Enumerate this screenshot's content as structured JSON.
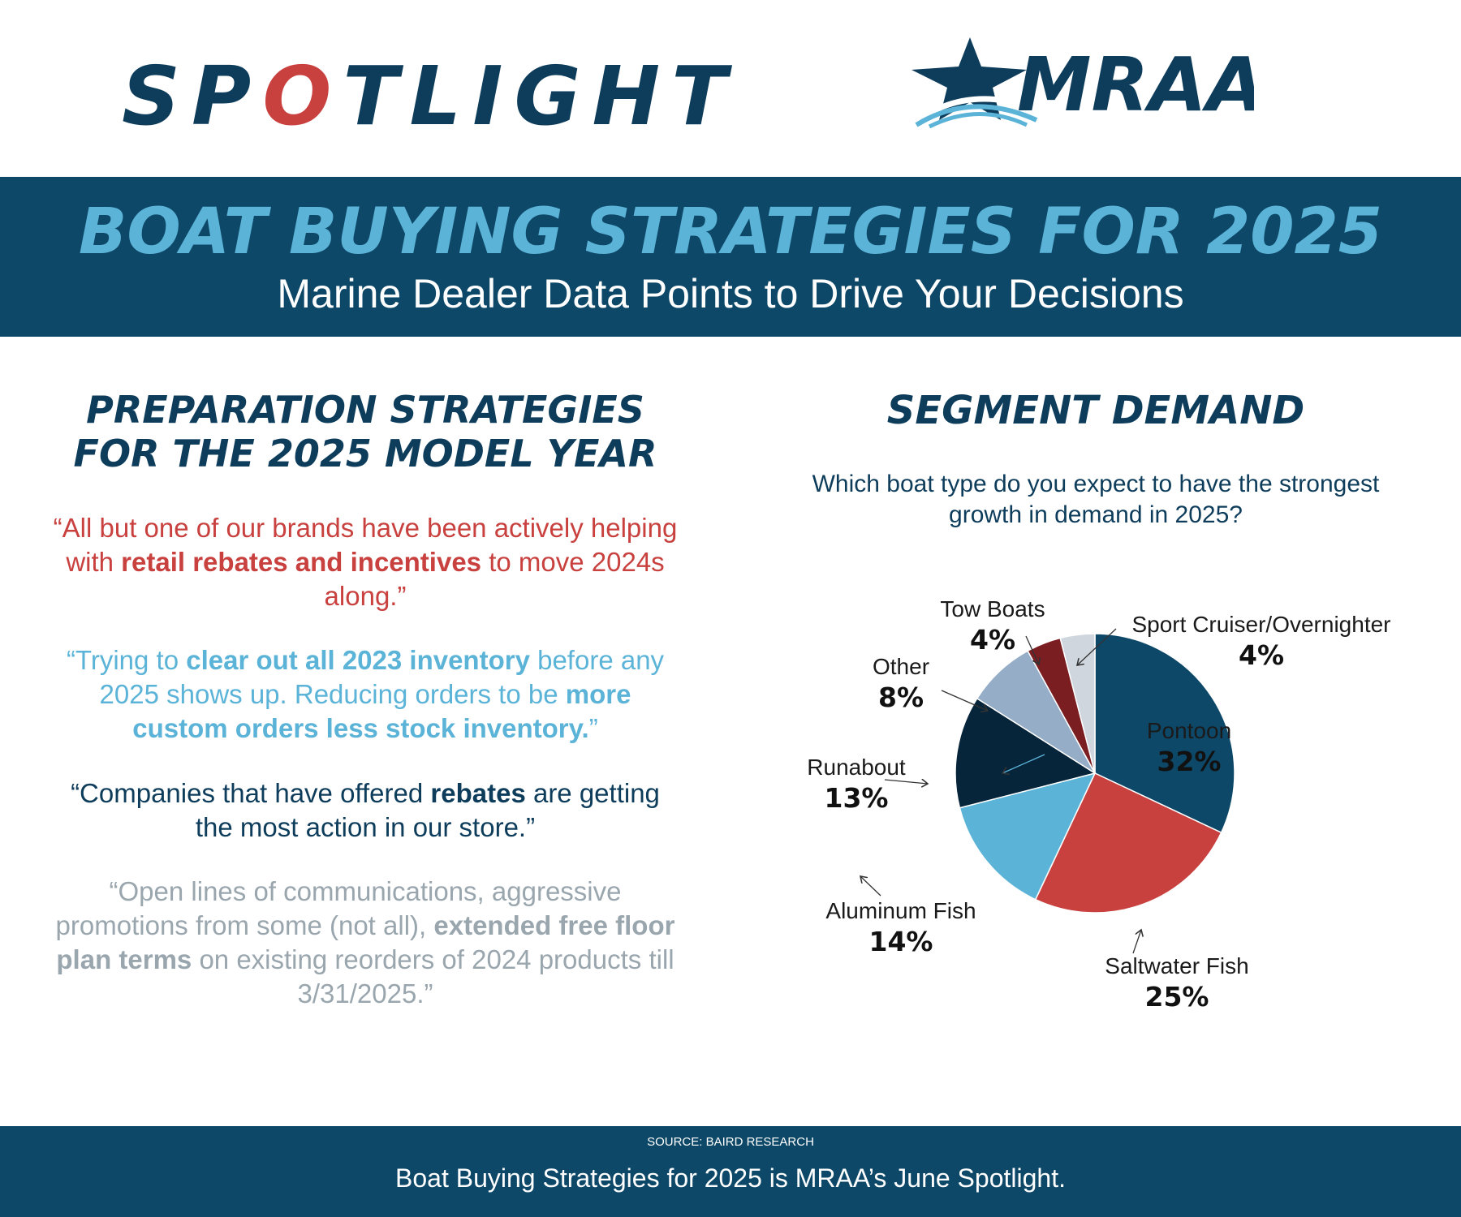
{
  "header": {
    "spotlight_logo": {
      "prefix": "SP",
      "accent": "O",
      "suffix": "TLIGHT"
    },
    "mraa_logo": {
      "text": "MRAA"
    }
  },
  "banner": {
    "title": "BOAT BUYING STRATEGIES FOR 2025",
    "subtitle": "Marine Dealer Data Points to Drive Your Decisions"
  },
  "left": {
    "heading": "PREPARATION STRATEGIES FOR THE 2025 MODEL YEAR",
    "quotes": [
      {
        "pre": "“All but one of our brands have been actively helping with ",
        "bold": "retail rebates and incentives",
        "post": " to move 2024s along.”"
      },
      {
        "pre": "“Trying to ",
        "bold": "clear out all 2023 inventory",
        "mid": " before any 2025 shows up. Reducing orders to be ",
        "bold2": "more custom orders less stock inventory.",
        "post": "”"
      },
      {
        "pre": "“Companies that have offered ",
        "bold": "rebates",
        "post": " are getting the most action in our store.”"
      },
      {
        "pre": "“Open lines of communications, aggressive promotions from some (not all), ",
        "bold": "extended free floor plan terms",
        "post": " on existing reorders of 2024 products till 3/31/2025.”"
      }
    ]
  },
  "right": {
    "heading": "SEGMENT DEMAND",
    "question": "Which boat type do you expect to have the strongest growth in demand in 2025?"
  },
  "chart_data": {
    "type": "pie",
    "categories": [
      "Pontoon",
      "Saltwater Fish",
      "Aluminum Fish",
      "Runabout",
      "Other",
      "Tow Boats",
      "Sport Cruiser/Overnighter"
    ],
    "values": [
      32,
      25,
      14,
      13,
      8,
      4,
      4
    ],
    "value_labels": [
      "32%",
      "25%",
      "14%",
      "13%",
      "8%",
      "4%",
      "4%"
    ],
    "colors": [
      "#0e4868",
      "#c9413f",
      "#5bb4d8",
      "#06243a",
      "#95adc6",
      "#7a1e22",
      "#cfd6de"
    ]
  },
  "footer": {
    "source": "SOURCE: BAIRD RESEARCH",
    "text": "Boat Buying Strategies for 2025 is MRAA’s June Spotlight."
  }
}
